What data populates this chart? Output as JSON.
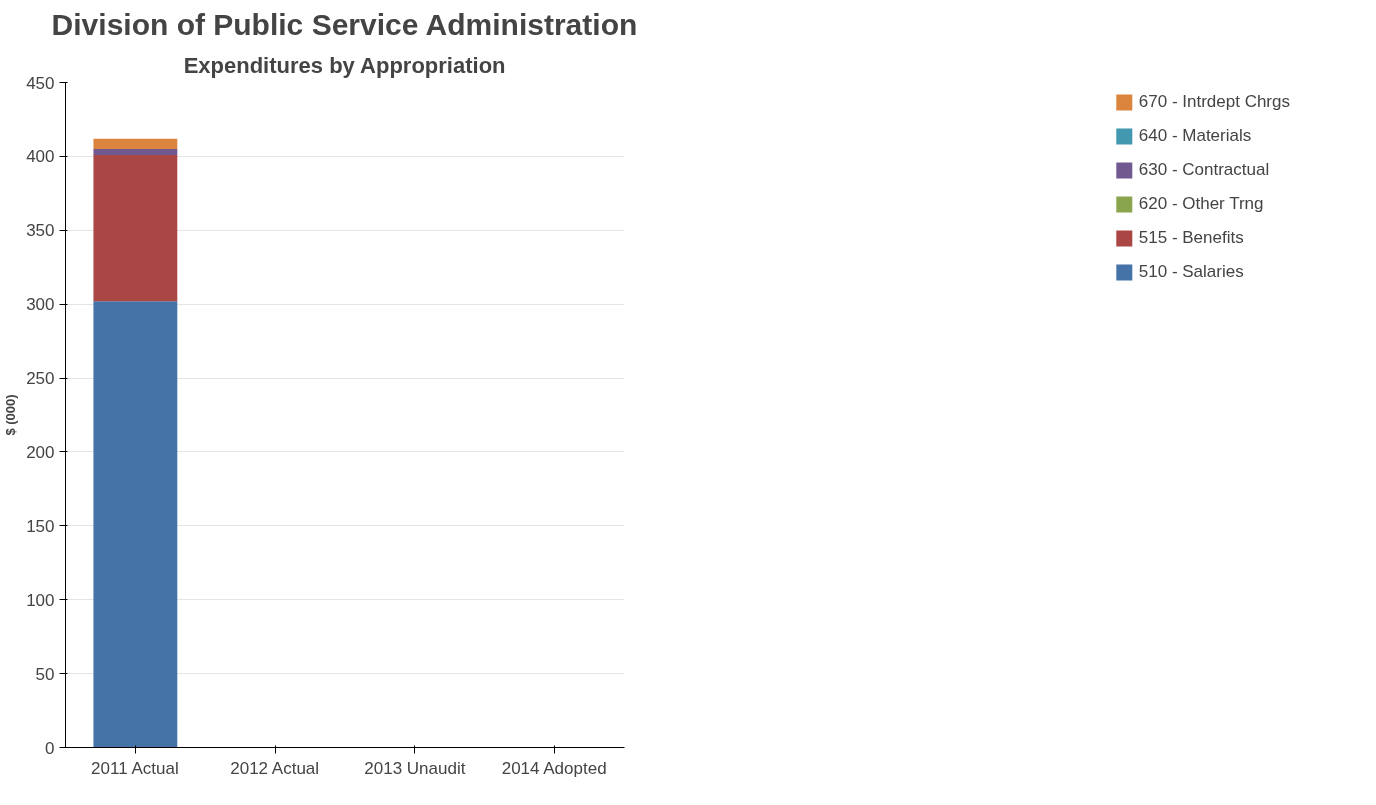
{
  "chart_data": {
    "type": "bar",
    "stacked": true,
    "title": "Division of Public Service Administration",
    "subtitle": "Expenditures by Appropriation",
    "ylabel": "$ (000)",
    "categories": [
      "2011 Actual",
      "2012 Actual",
      "2013 Unaudit",
      "2014 Adopted"
    ],
    "series": [
      {
        "name": "510 - Salaries",
        "color": "#4572a7",
        "values": [
          302,
          0,
          0,
          0
        ]
      },
      {
        "name": "515 - Benefits",
        "color": "#aa4643",
        "values": [
          99,
          0,
          0,
          0
        ]
      },
      {
        "name": "620 - Other Trng",
        "color": "#89a54e",
        "values": [
          0,
          0,
          0,
          0
        ]
      },
      {
        "name": "630 - Contractual",
        "color": "#71588f",
        "values": [
          4,
          0,
          0,
          0
        ]
      },
      {
        "name": "640 - Materials",
        "color": "#4198af",
        "values": [
          0,
          0,
          0,
          0
        ]
      },
      {
        "name": "670 - Intrdept Chrgs",
        "color": "#db843d",
        "values": [
          7,
          0,
          0,
          0
        ]
      }
    ],
    "ylim": [
      0,
      450
    ],
    "yticks": [
      0,
      50,
      100,
      150,
      200,
      250,
      300,
      350,
      400,
      450
    ],
    "grid": "y",
    "legend": "right"
  }
}
